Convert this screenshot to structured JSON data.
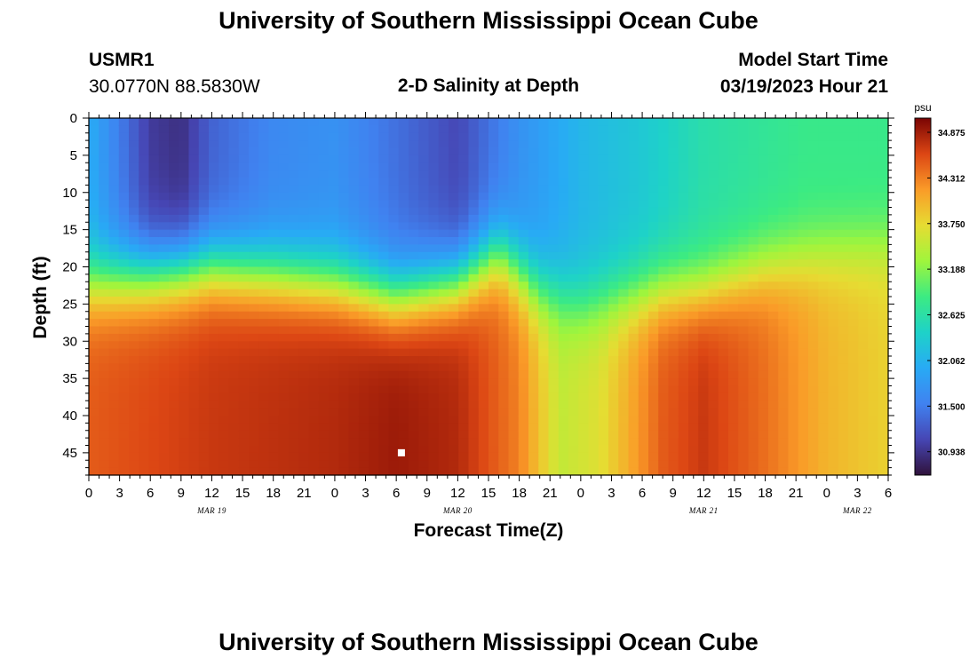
{
  "page": {
    "title": "University of Southern Mississippi Ocean Cube",
    "footer_title": "University of Southern Mississippi Ocean Cube"
  },
  "header": {
    "station": "USMR1",
    "coords": "30.0770N  88.5830W",
    "plot_title": "2-D Salinity at Depth",
    "model_label": "Model Start Time",
    "model_time": "03/19/2023 Hour 21"
  },
  "chart_data": {
    "type": "heatmap",
    "xlabel": "Forecast Time(Z)",
    "ylabel": "Depth (ft)",
    "x_tick_labels": [
      "0",
      "3",
      "6",
      "9",
      "12",
      "15",
      "18",
      "21",
      "0",
      "3",
      "6",
      "9",
      "12",
      "15",
      "18",
      "21",
      "0",
      "3",
      "6",
      "9",
      "12",
      "15",
      "18",
      "21",
      "0",
      "3",
      "6"
    ],
    "date_labels": [
      {
        "label": "MAR 19",
        "hour": 12
      },
      {
        "label": "MAR 20",
        "hour": 36
      },
      {
        "label": "MAR 21",
        "hour": 60
      },
      {
        "label": "MAR 22",
        "hour": 75
      }
    ],
    "xlim": [
      0,
      78
    ],
    "y_ticks": [
      0,
      5,
      10,
      15,
      20,
      25,
      30,
      35,
      40,
      45
    ],
    "ylim": [
      0,
      48
    ],
    "y_inverted": true,
    "colorbar": {
      "unit": "psu",
      "ticks": [
        "34.875",
        "34.312",
        "33.750",
        "33.188",
        "32.625",
        "32.062",
        "31.500",
        "30.938"
      ],
      "min": 30.65,
      "max": 35.05
    },
    "marker": {
      "hour": 30.5,
      "depth": 45
    },
    "pycnocline_depth": [
      [
        0,
        22
      ],
      [
        6,
        21
      ],
      [
        12,
        20
      ],
      [
        18,
        21
      ],
      [
        24,
        22
      ],
      [
        30,
        24
      ],
      [
        36,
        22
      ],
      [
        40,
        18
      ],
      [
        44,
        23
      ],
      [
        48,
        25
      ],
      [
        52,
        24
      ],
      [
        56,
        23
      ],
      [
        60,
        23
      ],
      [
        66,
        20
      ],
      [
        72,
        18
      ],
      [
        78,
        17
      ]
    ],
    "surface_salinity": [
      [
        0,
        32.0
      ],
      [
        6,
        31.0
      ],
      [
        9,
        30.9
      ],
      [
        12,
        31.3
      ],
      [
        18,
        31.6
      ],
      [
        24,
        31.7
      ],
      [
        30,
        31.4
      ],
      [
        36,
        31.1
      ],
      [
        42,
        31.7
      ],
      [
        48,
        32.1
      ],
      [
        54,
        32.3
      ],
      [
        60,
        32.6
      ],
      [
        70,
        32.8
      ],
      [
        78,
        32.8
      ]
    ],
    "bottom_salinity": [
      [
        0,
        34.5
      ],
      [
        12,
        34.7
      ],
      [
        24,
        34.8
      ],
      [
        30,
        34.9
      ],
      [
        36,
        34.8
      ],
      [
        42,
        34.3
      ],
      [
        46,
        33.5
      ],
      [
        50,
        33.7
      ],
      [
        56,
        34.5
      ],
      [
        60,
        34.7
      ],
      [
        66,
        34.4
      ],
      [
        72,
        34.0
      ],
      [
        78,
        33.8
      ]
    ]
  }
}
